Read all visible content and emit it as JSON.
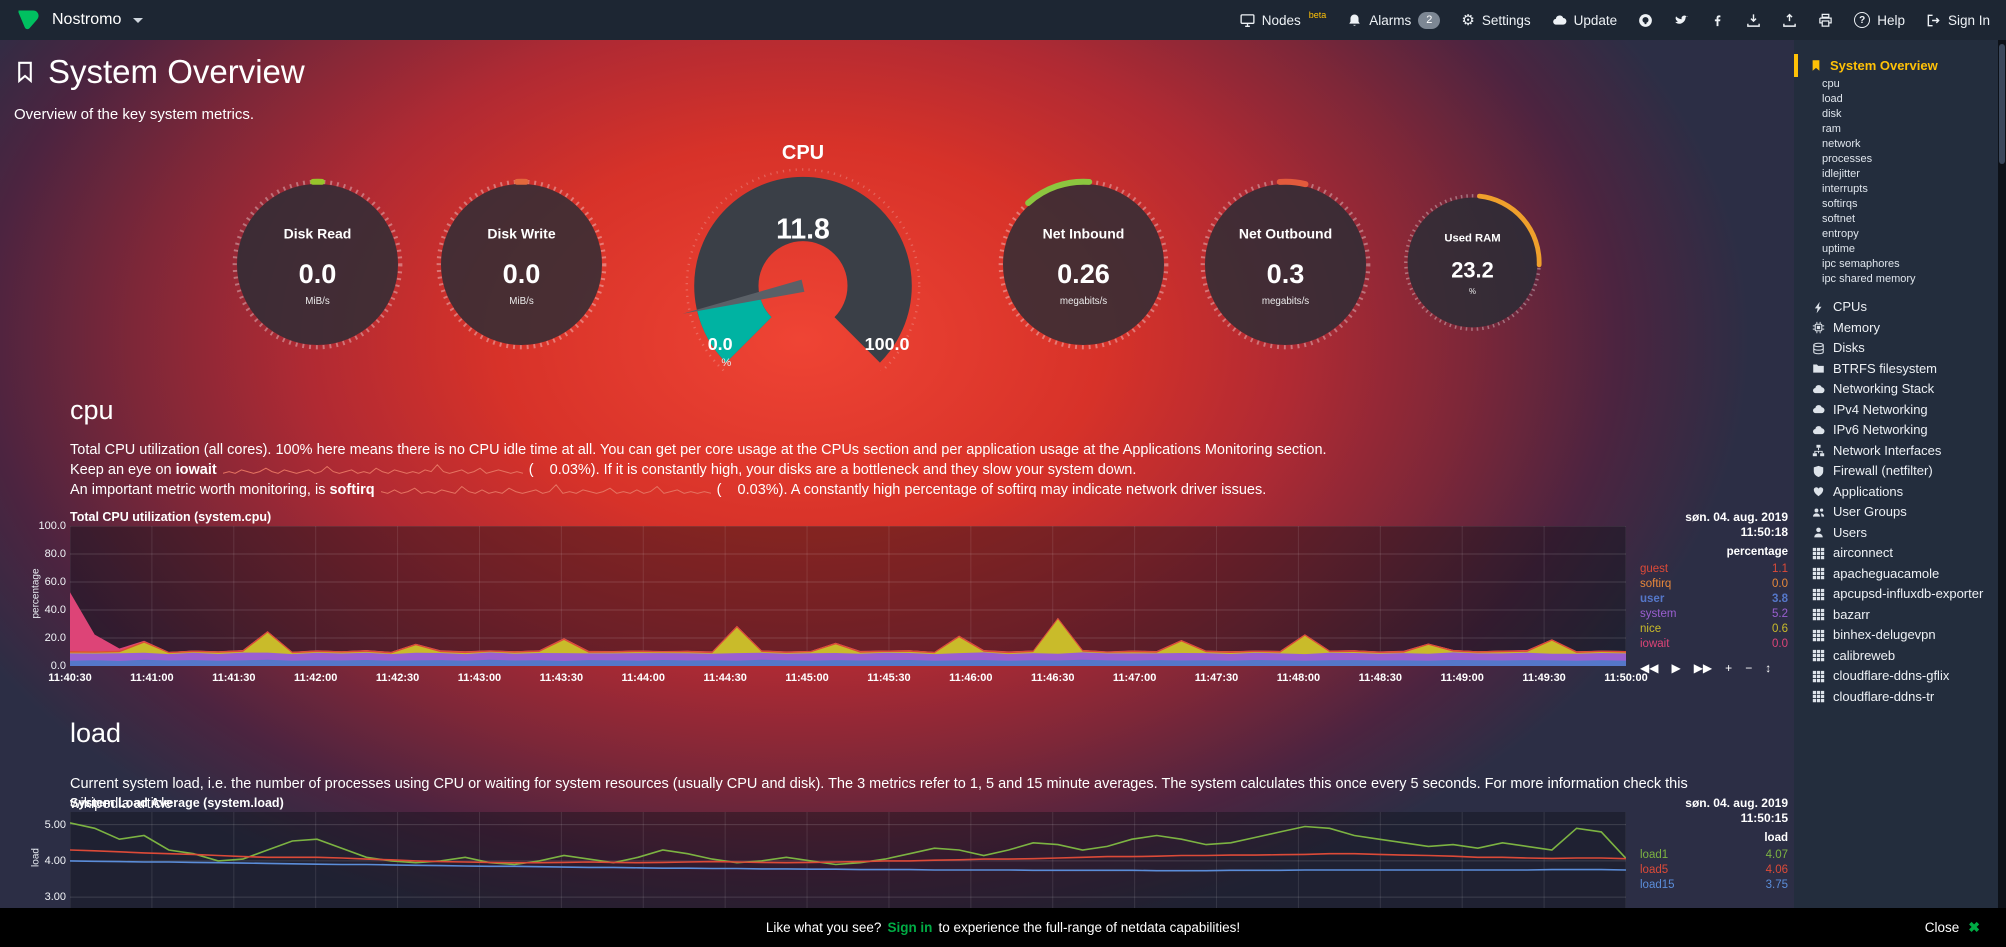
{
  "navbar": {
    "brand": "Nostromo",
    "nodes_label": "Nodes",
    "nodes_badge": "beta",
    "alarms_label": "Alarms",
    "alarms_count": "2",
    "settings_label": "Settings",
    "update_label": "Update",
    "help_label": "Help",
    "signin_label": "Sign In"
  },
  "icons": {
    "gear": "⚙",
    "question": "?",
    "close": "✖"
  },
  "toolbar": [
    {
      "glyph": "◀◀",
      "name": "skip-back-icon"
    },
    {
      "glyph": "▶",
      "name": "play-icon"
    },
    {
      "glyph": "▶▶",
      "name": "skip-forward-icon"
    },
    {
      "glyph": "+",
      "name": "zoom-in-icon"
    },
    {
      "glyph": "−",
      "name": "zoom-out-icon"
    },
    {
      "glyph": "↕",
      "name": "pan-icon"
    }
  ],
  "page": {
    "title": "System Overview",
    "subtitle": "Overview of the key system metrics."
  },
  "gauges": {
    "cpu": {
      "title": "CPU",
      "value": "11.8",
      "min": "0.0",
      "max": "100.0",
      "unit": "%",
      "percent": 11.8,
      "accent": "#00b3a2"
    },
    "circles": [
      {
        "title": "Disk Read",
        "value": "0.0",
        "unit": "MiB/s",
        "accent": "#97C42B",
        "arc": [
          -3,
          3
        ],
        "size": 175
      },
      {
        "title": "Disk Write",
        "value": "0.0",
        "unit": "MiB/s",
        "accent": "#E2683C",
        "arc": [
          -3,
          3
        ],
        "size": 175
      },
      {
        "title": "Net Inbound",
        "value": "0.26",
        "unit": "megabits/s",
        "accent": "#8CC63F",
        "arc": [
          -42,
          4
        ],
        "size": 175
      },
      {
        "title": "Net Outbound",
        "value": "0.3",
        "unit": "megabits/s",
        "accent": "#E25A3C",
        "arc": [
          -4,
          14
        ],
        "size": 175
      },
      {
        "title": "Used RAM",
        "value": "23.2",
        "unit": "%",
        "accent": "#EFA02C",
        "arc": [
          6,
          92
        ],
        "size": 141
      }
    ]
  },
  "cpu_section": {
    "heading": "cpu",
    "p1": "Total CPU utilization (all cores). 100% here means there is no CPU idle time at all. You can get per core usage at the CPUs section and per application usage at the Applications Monitoring section.",
    "p2_pre": "Keep an eye on",
    "p2_bold": "iowait",
    "p2_post": "(    0.03%). If it is constantly high, your disks are a bottleneck and they slow your system down.",
    "p3_pre": "An important metric worth monitoring, is",
    "p3_bold": "softirq",
    "p3_post": "(    0.03%). A constantly high percentage of softirq may indicate network driver issues.",
    "iowait_spark": [
      1,
      2,
      1,
      3,
      2,
      1,
      2,
      4,
      2,
      1,
      3,
      2,
      1,
      2,
      3,
      1,
      2,
      5,
      2,
      1,
      2,
      3,
      1,
      2,
      1,
      4,
      2,
      1,
      3,
      2,
      1,
      2,
      1,
      3,
      2,
      6,
      2,
      1,
      2,
      3,
      1,
      2,
      4,
      1,
      2,
      3,
      2,
      1,
      2,
      1
    ],
    "softirq_spark": [
      2,
      1,
      3,
      1,
      2,
      4,
      1,
      2,
      1,
      3,
      2,
      1,
      5,
      2,
      1,
      3,
      1,
      2,
      1,
      4,
      2,
      1,
      2,
      3,
      1,
      2,
      6,
      1,
      2,
      1,
      3,
      2,
      1,
      2,
      4,
      1,
      2,
      1,
      3,
      1,
      2,
      5,
      1,
      2,
      3,
      1,
      2,
      1,
      2,
      1
    ]
  },
  "load_section": {
    "heading": "load",
    "p1": "Current system load, i.e. the number of processes using CPU or waiting for system resources (usually CPU and disk). The 3 metrics refer to 1, 5 and 15 minute averages. The system calculates this once every 5 seconds. For more information check this wikipedia article"
  },
  "chart_data": [
    {
      "type": "area",
      "stacked": true,
      "title": "Total CPU utilization (system.cpu)",
      "date": "søn. 04. aug. 2019",
      "time": "11:50:18",
      "unit": "percentage",
      "ylabel": "percentage",
      "ylim": [
        0,
        100
      ],
      "yticks": [
        "100.0",
        "80.0",
        "60.0",
        "40.0",
        "20.0",
        "0.0"
      ],
      "xticks": [
        "11:40:30",
        "11:41:00",
        "11:41:30",
        "11:42:00",
        "11:42:30",
        "11:43:00",
        "11:43:30",
        "11:44:00",
        "11:44:30",
        "11:45:00",
        "11:45:30",
        "11:46:00",
        "11:46:30",
        "11:47:00",
        "11:47:30",
        "11:48:00",
        "11:48:30",
        "11:49:00",
        "11:49:30",
        "11:50:00"
      ],
      "legend": [
        {
          "name": "guest",
          "value": "1.1",
          "color": "#DC4A38"
        },
        {
          "name": "softirq",
          "value": "0.0",
          "color": "#E8883A"
        },
        {
          "name": "user",
          "value": "3.8",
          "color": "#5577C9",
          "bold": true
        },
        {
          "name": "system",
          "value": "5.2",
          "color": "#9A5FD0"
        },
        {
          "name": "nice",
          "value": "0.6",
          "color": "#C9BB2A"
        },
        {
          "name": "iowait",
          "value": "0.0",
          "color": "#DD4477"
        }
      ],
      "series": [
        {
          "name": "user",
          "color": "#5577C9",
          "values": [
            3.8,
            4.1,
            3.6,
            4.4,
            3.9,
            4.2,
            3.7,
            4.0,
            4.5,
            3.8,
            4.1,
            3.9,
            4.3,
            3.7,
            4.0,
            4.2,
            3.8,
            4.4,
            3.9,
            4.1,
            3.6,
            4.2,
            4.0,
            3.8,
            4.3,
            3.9,
            4.1,
            3.7,
            4.4,
            4.0,
            3.8,
            4.2,
            3.9,
            4.1,
            4.3,
            3.8,
            4.0,
            4.2,
            3.7,
            4.1,
            3.9,
            4.4,
            4.0,
            3.8,
            4.2,
            3.9,
            4.1,
            3.7,
            4.3,
            4.0,
            3.8,
            4.1,
            4.2,
            3.9,
            4.0,
            3.8,
            4.3,
            4.1,
            3.9,
            4.2,
            4.0,
            3.8,
            4.1,
            3.8
          ]
        },
        {
          "name": "system",
          "color": "#9A5FD0",
          "values": [
            5.2,
            4.8,
            5.5,
            5.0,
            4.6,
            5.3,
            4.9,
            5.6,
            5.1,
            4.7,
            5.4,
            5.0,
            5.2,
            4.8,
            5.5,
            5.1,
            4.7,
            5.3,
            4.9,
            5.2,
            5.6,
            4.8,
            5.0,
            5.4,
            4.9,
            5.2,
            4.7,
            5.5,
            5.0,
            4.8,
            5.3,
            5.1,
            4.9,
            5.4,
            5.0,
            4.7,
            5.2,
            5.5,
            4.8,
            5.1,
            4.9,
            5.3,
            5.0,
            5.2,
            4.8,
            5.4,
            5.1,
            4.9,
            5.2,
            5.0,
            4.7,
            5.3,
            5.1,
            4.8,
            5.2,
            5.0,
            5.4,
            4.9,
            5.1,
            5.3,
            4.8,
            5.0,
            5.2,
            5.2
          ]
        },
        {
          "name": "nice",
          "color": "#C9BB2A",
          "values": [
            0.6,
            0.5,
            0.7,
            7.2,
            0.6,
            0.4,
            0.8,
            0.5,
            14.1,
            0.6,
            0.5,
            0.7,
            0.6,
            0.4,
            5.3,
            0.6,
            0.7,
            0.5,
            0.6,
            0.8,
            9.4,
            0.5,
            0.6,
            0.7,
            0.5,
            0.6,
            0.4,
            18.2,
            0.6,
            0.5,
            0.7,
            6.1,
            0.6,
            0.5,
            0.8,
            0.6,
            11.3,
            0.5,
            0.6,
            0.7,
            24.5,
            0.6,
            0.4,
            0.7,
            0.5,
            8.2,
            0.6,
            0.7,
            0.5,
            0.6,
            13.1,
            0.5,
            0.7,
            0.6,
            0.4,
            6.3,
            0.6,
            0.5,
            0.8,
            0.6,
            9.2,
            0.5,
            0.7,
            0.6
          ]
        },
        {
          "name": "guest",
          "color": "#DC4A38",
          "values": [
            1.1,
            1.0,
            1.2,
            1.1,
            0.9,
            1.1,
            1.0,
            1.2,
            1.1,
            1.0,
            1.1,
            0.9,
            1.2,
            1.1,
            1.0,
            1.1,
            1.2,
            0.9,
            1.1,
            1.0,
            1.1,
            1.2,
            1.0,
            1.1,
            0.9,
            1.1,
            1.0,
            1.2,
            1.1,
            1.0,
            0.9,
            1.1,
            1.2,
            1.0,
            1.1,
            0.9,
            1.1,
            1.0,
            1.2,
            1.1,
            1.0,
            1.1,
            0.9,
            1.2,
            1.1,
            1.0,
            1.1,
            1.2,
            0.9,
            1.1,
            1.0,
            1.1,
            1.2,
            1.0,
            1.1,
            0.9,
            1.1,
            1.0,
            1.2,
            1.1,
            1.0,
            1.1,
            0.9,
            1.1
          ]
        },
        {
          "name": "softirq",
          "color": "#E8883A",
          "values": [
            0,
            0,
            0,
            0,
            0,
            0,
            0,
            0,
            0,
            0,
            0,
            0,
            0,
            0,
            0,
            0,
            0,
            0,
            0,
            0,
            0,
            0,
            0,
            0,
            0,
            0,
            0,
            0,
            0,
            0,
            0,
            0,
            0,
            0,
            0,
            0,
            0,
            0,
            0,
            0,
            0,
            0,
            0,
            0,
            0,
            0,
            0,
            0,
            0,
            0,
            0,
            0,
            0,
            0,
            0,
            0,
            0,
            0,
            0,
            0,
            0,
            0,
            0,
            0
          ]
        },
        {
          "name": "iowait",
          "color": "#DD4477",
          "values": [
            42,
            12,
            1.5,
            0.3,
            0.1,
            0.1,
            0.2,
            0.1,
            0.1,
            0.1,
            0.2,
            0.1,
            0.1,
            0.1,
            0.1,
            0.2,
            0.1,
            0.1,
            0.1,
            0.1,
            0.2,
            0.1,
            0.1,
            0.1,
            0.1,
            0.1,
            0.2,
            0.1,
            0.1,
            0.1,
            0.1,
            0.1,
            0.2,
            0.1,
            0.1,
            0.1,
            0.1,
            0.2,
            0.1,
            0.1,
            0.1,
            0.1,
            0.1,
            0.2,
            0.1,
            0.1,
            0.1,
            0.1,
            0.2,
            0.1,
            0.1,
            0.1,
            0.1,
            0.1,
            0.2,
            0.1,
            0.1,
            0.1,
            0.1,
            0.2,
            0.1,
            0.1,
            0.1,
            0.0
          ]
        }
      ]
    },
    {
      "type": "line",
      "stacked": false,
      "title": "System Load Average (system.load)",
      "date": "søn. 04. aug. 2019",
      "time": "11:50:15",
      "unit": "load",
      "ylabel": "load",
      "ylim": [
        2.7,
        5.35
      ],
      "yticks": [
        "5.00",
        "4.00",
        "3.00"
      ],
      "xticks": [],
      "legend": [
        {
          "name": "load1",
          "value": "4.07",
          "color": "#7CB342"
        },
        {
          "name": "load5",
          "value": "4.06",
          "color": "#DC4A38"
        },
        {
          "name": "load15",
          "value": "3.75",
          "color": "#5B8DD9"
        }
      ],
      "series": [
        {
          "name": "load1",
          "color": "#7CB342",
          "values": [
            5.05,
            4.9,
            4.6,
            4.7,
            4.3,
            4.2,
            4.0,
            4.05,
            4.3,
            4.55,
            4.6,
            4.35,
            4.1,
            4.0,
            3.95,
            4.0,
            4.1,
            3.95,
            3.9,
            4.0,
            4.15,
            4.05,
            3.95,
            4.1,
            4.3,
            4.2,
            4.05,
            3.95,
            4.0,
            4.1,
            4.0,
            3.9,
            3.95,
            4.05,
            4.2,
            4.35,
            4.3,
            4.15,
            4.3,
            4.5,
            4.45,
            4.3,
            4.4,
            4.6,
            4.7,
            4.6,
            4.45,
            4.5,
            4.65,
            4.8,
            4.95,
            4.9,
            4.7,
            4.6,
            4.5,
            4.4,
            4.45,
            4.35,
            4.5,
            4.4,
            4.3,
            4.9,
            4.8,
            4.07
          ]
        },
        {
          "name": "load5",
          "color": "#DC4A38",
          "values": [
            4.3,
            4.28,
            4.25,
            4.22,
            4.2,
            4.18,
            4.15,
            4.12,
            4.1,
            4.1,
            4.1,
            4.08,
            4.05,
            4.03,
            4.0,
            3.98,
            3.97,
            3.96,
            3.95,
            3.95,
            3.96,
            3.97,
            3.96,
            3.95,
            3.96,
            3.97,
            3.98,
            3.97,
            3.96,
            3.95,
            3.96,
            3.97,
            3.98,
            4.0,
            4.0,
            4.02,
            4.03,
            4.05,
            4.05,
            4.06,
            4.08,
            4.1,
            4.12,
            4.12,
            4.13,
            4.15,
            4.15,
            4.16,
            4.16,
            4.17,
            4.18,
            4.2,
            4.2,
            4.18,
            4.16,
            4.15,
            4.13,
            4.1,
            4.1,
            4.08,
            4.07,
            4.08,
            4.08,
            4.06
          ]
        },
        {
          "name": "load15",
          "color": "#5B8DD9",
          "values": [
            4.0,
            3.99,
            3.98,
            3.97,
            3.97,
            3.96,
            3.95,
            3.94,
            3.93,
            3.92,
            3.91,
            3.9,
            3.9,
            3.89,
            3.88,
            3.87,
            3.86,
            3.85,
            3.85,
            3.84,
            3.83,
            3.82,
            3.82,
            3.81,
            3.8,
            3.8,
            3.79,
            3.79,
            3.78,
            3.78,
            3.77,
            3.77,
            3.76,
            3.76,
            3.76,
            3.75,
            3.75,
            3.75,
            3.75,
            3.74,
            3.74,
            3.74,
            3.74,
            3.74,
            3.73,
            3.73,
            3.73,
            3.74,
            3.74,
            3.74,
            3.75,
            3.75,
            3.75,
            3.75,
            3.75,
            3.75,
            3.75,
            3.75,
            3.75,
            3.75,
            3.76,
            3.76,
            3.76,
            3.75
          ]
        }
      ]
    }
  ],
  "sidebar": {
    "active": "System Overview",
    "sub_items": [
      "cpu",
      "load",
      "disk",
      "ram",
      "network",
      "processes",
      "idlejitter",
      "interrupts",
      "softirqs",
      "softnet",
      "entropy",
      "uptime",
      "ipc semaphores",
      "ipc shared memory"
    ],
    "sections": [
      {
        "label": "CPUs",
        "icon": "bolt"
      },
      {
        "label": "Memory",
        "icon": "chip"
      },
      {
        "label": "Disks",
        "icon": "disks"
      },
      {
        "label": "BTRFS filesystem",
        "icon": "folder"
      },
      {
        "label": "Networking Stack",
        "icon": "cloud"
      },
      {
        "label": "IPv4 Networking",
        "icon": "cloud"
      },
      {
        "label": "IPv6 Networking",
        "icon": "cloud"
      },
      {
        "label": "Network Interfaces",
        "icon": "sitemap"
      },
      {
        "label": "Firewall (netfilter)",
        "icon": "shield"
      },
      {
        "label": "Applications",
        "icon": "heart"
      },
      {
        "label": "User Groups",
        "icon": "users"
      },
      {
        "label": "Users",
        "icon": "user"
      },
      {
        "label": "airconnect",
        "icon": "grid"
      },
      {
        "label": "apacheguacamole",
        "icon": "grid"
      },
      {
        "label": "apcupsd-influxdb-exporter",
        "icon": "grid"
      },
      {
        "label": "bazarr",
        "icon": "grid"
      },
      {
        "label": "binhex-delugevpn",
        "icon": "grid"
      },
      {
        "label": "calibreweb",
        "icon": "grid"
      },
      {
        "label": "cloudflare-ddns-gflix",
        "icon": "grid"
      },
      {
        "label": "cloudflare-ddns-tr",
        "icon": "grid"
      }
    ]
  },
  "footer": {
    "prefix": "Like what you see?",
    "link": "Sign in",
    "suffix": "to experience the full-range of netdata capabilities!",
    "close": "Close"
  }
}
